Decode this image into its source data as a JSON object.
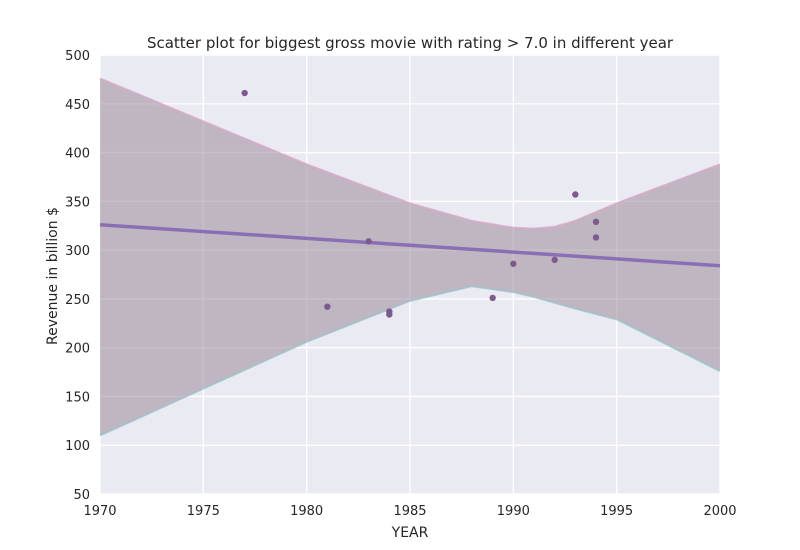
{
  "chart_data": {
    "type": "scatter",
    "title": "Scatter plot for biggest gross movie with rating > 7.0 in different year",
    "xlabel": "YEAR",
    "ylabel": "Revenue in billion $",
    "xlim": [
      1970,
      2000
    ],
    "ylim": [
      50,
      500
    ],
    "x_ticks": [
      1970,
      1975,
      1980,
      1985,
      1990,
      1995,
      2000
    ],
    "y_ticks": [
      50,
      100,
      150,
      200,
      250,
      300,
      350,
      400,
      450,
      500
    ],
    "grid": true,
    "points": [
      {
        "x": 1977,
        "y": 461
      },
      {
        "x": 1981,
        "y": 242
      },
      {
        "x": 1983,
        "y": 309
      },
      {
        "x": 1984,
        "y": 237
      },
      {
        "x": 1984,
        "y": 234
      },
      {
        "x": 1989,
        "y": 251
      },
      {
        "x": 1990,
        "y": 286
      },
      {
        "x": 1992,
        "y": 290
      },
      {
        "x": 1993,
        "y": 357
      },
      {
        "x": 1994,
        "y": 329
      },
      {
        "x": 1994,
        "y": 313
      }
    ],
    "regression_line": {
      "x": [
        1970,
        2000
      ],
      "y": [
        326,
        284
      ]
    },
    "confidence_band": {
      "x": [
        1970,
        1975,
        1980,
        1985,
        1988,
        1990,
        1991,
        1992,
        1993,
        1995,
        2000
      ],
      "upper": [
        476,
        432,
        388,
        348,
        330,
        323,
        322,
        324,
        330,
        348,
        388
      ],
      "lower": [
        110,
        158,
        206,
        248,
        263,
        257,
        252,
        246,
        240,
        229,
        176
      ]
    },
    "colors": {
      "background": "#eaeaf2",
      "grid": "#ffffff",
      "point": "#7d5c8d",
      "line": "#8b6fb5",
      "band": "#9b8a9a",
      "band_edge_upper": "#d8a8c8",
      "band_edge_lower": "#9ec0c8"
    }
  }
}
